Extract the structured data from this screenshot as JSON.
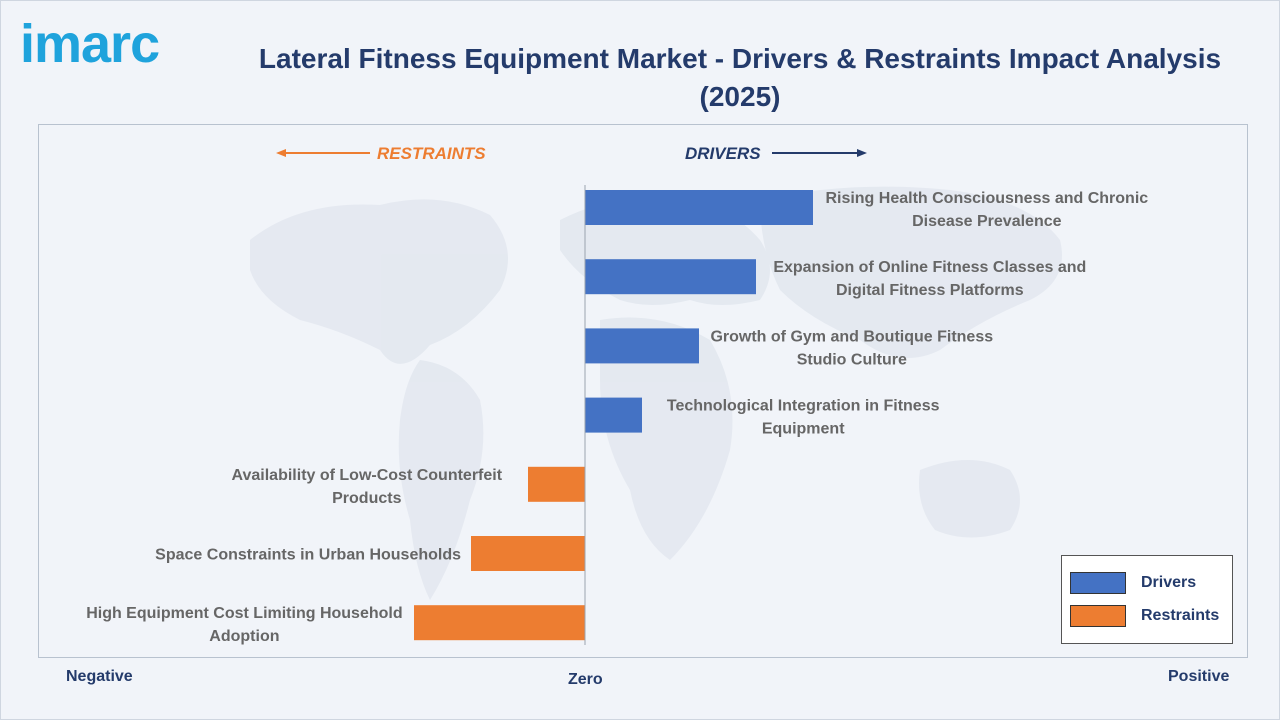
{
  "brand": {
    "logo_text": "imarc"
  },
  "title": "Lateral Fitness Equipment Market - Drivers & Restraints Impact Analysis (2025)",
  "colors": {
    "drivers": "#4472c4",
    "restraints": "#ed7d31",
    "title": "#243b6b",
    "label": "#666666"
  },
  "chart_data": {
    "type": "bar",
    "orientation": "horizontal",
    "title": "Lateral Fitness Equipment Market - Drivers & Restraints Impact Analysis (2025)",
    "direction_labels": {
      "restraints": "RESTRAINTS",
      "drivers": "DRIVERS"
    },
    "axis_labels": {
      "negative": "Negative",
      "zero": "Zero",
      "positive": "Positive"
    },
    "categories": [
      "Rising Health Consciousness and Chronic Disease Prevalence",
      "Expansion of Online Fitness Classes and Digital Fitness Platforms",
      "Growth of Gym and Boutique Fitness Studio Culture",
      "Technological Integration in Fitness Equipment",
      "Availability of Low-Cost Counterfeit Products",
      "Space Constraints in Urban Households",
      "High Equipment Cost Limiting Household Adoption"
    ],
    "values": [
      4,
      3,
      2,
      1,
      -1,
      -2,
      -3
    ],
    "series_types": [
      "Drivers",
      "Drivers",
      "Drivers",
      "Drivers",
      "Restraints",
      "Restraints",
      "Restraints"
    ],
    "xlim": [
      -3.8,
      4.0
    ],
    "legend": {
      "position": "bottom-right",
      "entries": [
        {
          "name": "Drivers",
          "color": "#4472c4"
        },
        {
          "name": "Restraints",
          "color": "#ed7d31"
        }
      ]
    },
    "grid": false
  }
}
